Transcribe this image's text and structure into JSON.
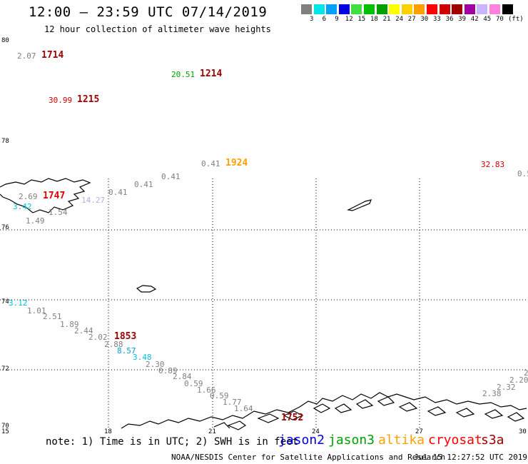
{
  "header": {
    "title": "12:00 – 23:59 UTC 07/14/2019",
    "subtitle": "12 hour collection of altimeter wave heights"
  },
  "colorbar": {
    "unit": "(ft)",
    "bins": [
      {
        "color": "#808080",
        "label": "3"
      },
      {
        "color": "#00e5e5",
        "label": "6"
      },
      {
        "color": "#00a0ff",
        "label": "9"
      },
      {
        "color": "#0000e0",
        "label": "12"
      },
      {
        "color": "#40e040",
        "label": "15"
      },
      {
        "color": "#00c000",
        "label": "18"
      },
      {
        "color": "#00a000",
        "label": "21"
      },
      {
        "color": "#ffff00",
        "label": "24"
      },
      {
        "color": "#ffd000",
        "label": "27"
      },
      {
        "color": "#ffa000",
        "label": "30"
      },
      {
        "color": "#ff0000",
        "label": "33"
      },
      {
        "color": "#d00000",
        "label": "36"
      },
      {
        "color": "#a00000",
        "label": "39"
      },
      {
        "color": "#a000a0",
        "label": "42"
      },
      {
        "color": "#c8b4ff",
        "label": "45"
      },
      {
        "color": "#ff80e0",
        "label": "70"
      },
      {
        "color": "#000000",
        "label": ""
      }
    ]
  },
  "axes": {
    "lat_labels": [
      "80",
      "78",
      "76",
      "74",
      "72",
      "70"
    ],
    "lon_labels": [
      "15",
      "18",
      "21",
      "24",
      "27",
      "30"
    ]
  },
  "observations": [
    {
      "text": "2.07",
      "color": "#808080"
    },
    {
      "text": "20.51",
      "color": "#00a000"
    },
    {
      "text": "30.99",
      "color": "#d00000"
    },
    {
      "text": "0.41",
      "color": "#808080"
    },
    {
      "text": "32.83",
      "color": "#d00000"
    },
    {
      "text": "0.5",
      "color": "#808080"
    },
    {
      "text": "0.41",
      "color": "#808080"
    },
    {
      "text": "0.41",
      "color": "#808080"
    },
    {
      "text": "0.41",
      "color": "#808080"
    },
    {
      "text": "2.69",
      "color": "#808080"
    },
    {
      "text": "3.42",
      "color": "#00c0e0"
    },
    {
      "text": "1.54",
      "color": "#808080"
    },
    {
      "text": "1.49",
      "color": "#808080"
    },
    {
      "text": "14.27",
      "color": "#b0b0e8"
    },
    {
      "text": "3.12",
      "color": "#00c0e0"
    },
    {
      "text": "1.01",
      "color": "#808080"
    },
    {
      "text": "2.51",
      "color": "#808080"
    },
    {
      "text": "1.89",
      "color": "#808080"
    },
    {
      "text": "2.44",
      "color": "#808080"
    },
    {
      "text": "2.02",
      "color": "#808080"
    },
    {
      "text": "2.88",
      "color": "#808080"
    },
    {
      "text": "8.57",
      "color": "#00a0e0"
    },
    {
      "text": "3.48",
      "color": "#00c0e0"
    },
    {
      "text": "2.30",
      "color": "#808080"
    },
    {
      "text": "0.89",
      "color": "#808080"
    },
    {
      "text": "2.84",
      "color": "#808080"
    },
    {
      "text": "0.59",
      "color": "#808080"
    },
    {
      "text": "1.66",
      "color": "#808080"
    },
    {
      "text": "0.59",
      "color": "#808080"
    },
    {
      "text": "1.77",
      "color": "#808080"
    },
    {
      "text": "1.64",
      "color": "#808080"
    },
    {
      "text": "2.38",
      "color": "#808080"
    },
    {
      "text": "2.32",
      "color": "#808080"
    },
    {
      "text": "2.20",
      "color": "#808080"
    },
    {
      "text": "2",
      "color": "#808080"
    }
  ],
  "passes": [
    {
      "text": "1714",
      "color": "#a00000"
    },
    {
      "text": "1214",
      "color": "#a00000"
    },
    {
      "text": "1215",
      "color": "#a00000"
    },
    {
      "text": "1924",
      "color": "#ffa000"
    },
    {
      "text": "1747",
      "color": "#e00000"
    },
    {
      "text": "1853",
      "color": "#a00000"
    },
    {
      "text": "1752",
      "color": "#a00000"
    }
  ],
  "footer": {
    "note": "note: 1) Time is in UTC; 2) SWH is in feet",
    "satellites": [
      {
        "name": "jason2",
        "color": "#0000e0"
      },
      {
        "name": "jason3",
        "color": "#00a000"
      },
      {
        "name": "altika",
        "color": "#ffa000"
      },
      {
        "name": "cryosat",
        "color": "#ff0000"
      },
      {
        "name": "s3a",
        "color": "#a00000"
      }
    ],
    "credit": "NOAA/NESDIS Center for Satellite Applications and Research",
    "timestamp": "Jul 15 12:27:52 UTC 2019"
  }
}
